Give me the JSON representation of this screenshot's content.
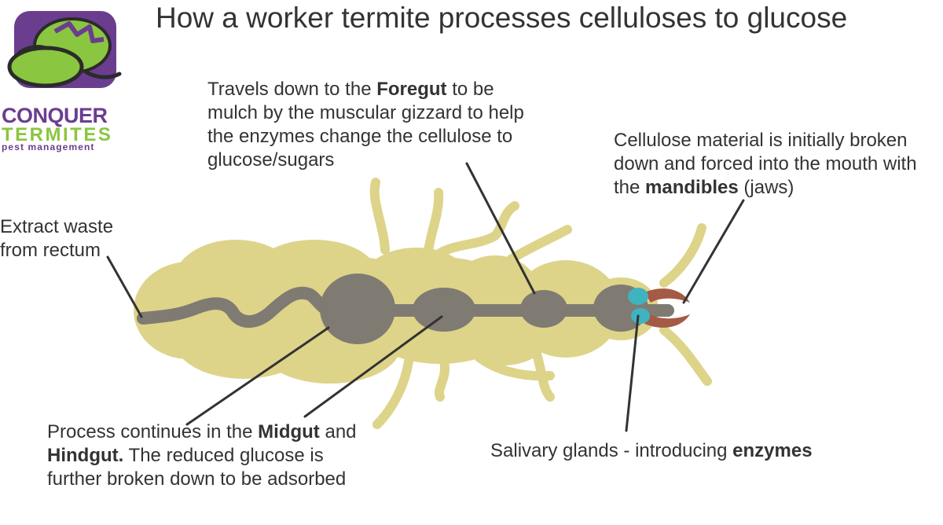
{
  "title": "How a worker termite processes celluloses to glucose",
  "logo": {
    "line1": "CONQUER",
    "line2": "TERMITES",
    "line3": "pest management"
  },
  "annotations": {
    "foregut": {
      "pre": "Travels down to the ",
      "bold": "Foregut",
      "post": " to be mulch by the muscular gizzard to help the enzymes change the cellulose to glucose/sugars"
    },
    "mandibles": {
      "pre": "Cellulose material is initially broken down and forced into the mouth with the ",
      "bold": "mandibles",
      "post": " (jaws)"
    },
    "rectum": {
      "text": "Extract waste from rectum"
    },
    "midgut": {
      "pre": "Process continues in the ",
      "bold1": "Midgut",
      "mid": " and ",
      "bold2": "Hindgut.",
      "post": " The reduced glucose is further broken down to be adsorbed"
    },
    "salivary": {
      "pre": "Salivary glands - introducing ",
      "bold": "enzymes"
    }
  },
  "colors": {
    "body": "#ddd48a",
    "gut": "#7f7b73",
    "glands": "#3fb3bf",
    "mandibles": "#a55a45",
    "logo_purple": "#6b3d8f",
    "logo_green": "#8ac640"
  }
}
